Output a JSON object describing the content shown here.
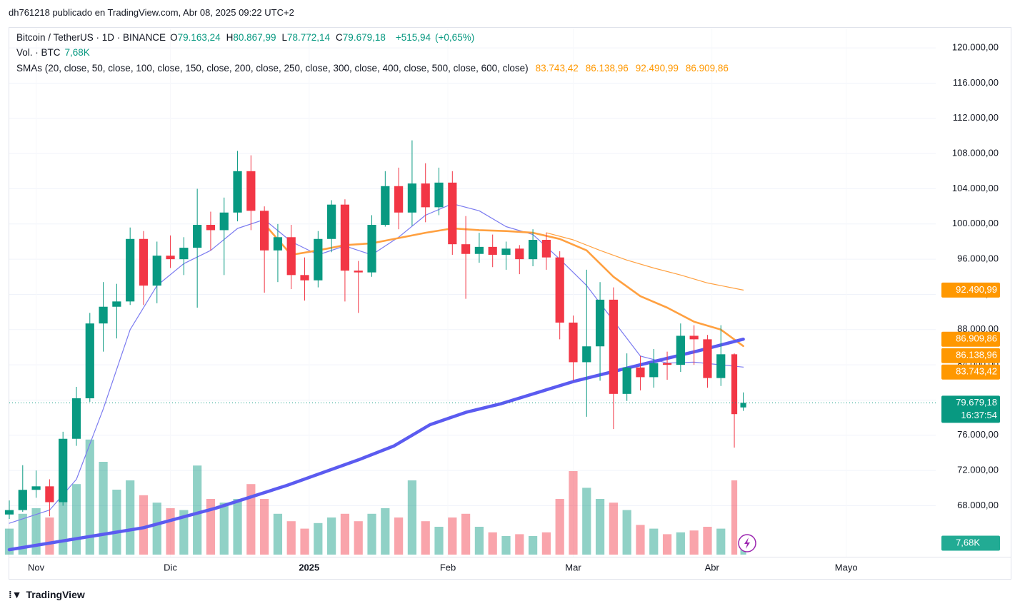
{
  "publisher": "dh761218 publicado en TradingView.com, Abr 08, 2025 09:22 UTC+2",
  "brand": "TradingView",
  "chart_data": {
    "type": "candlestick",
    "symbol": "Bitcoin / TetherUS · 1D · BINANCE",
    "ohlc": [
      {
        "key": "O",
        "value": 79163.24,
        "label": "79.163,24"
      },
      {
        "key": "H",
        "value": 80867.99,
        "label": "80.867,99"
      },
      {
        "key": "L",
        "value": 78772.14,
        "label": "78.772,14"
      },
      {
        "key": "C",
        "value": 79679.18,
        "label": "79.679,18"
      }
    ],
    "change": {
      "value": 515.94,
      "label": "+515,94"
    },
    "change_pct": {
      "value": 0.65,
      "label": "(+0,65%)"
    },
    "volume_title": "Vol. · BTC",
    "volume_last": {
      "value": 7680,
      "label": "7,68K"
    },
    "countdown": "16:37:54",
    "up_color": "#089981",
    "down_color": "#f23645",
    "grid": true,
    "xlim": [
      0,
      207
    ],
    "xticks": [
      {
        "value": 6,
        "label": "Nov"
      },
      {
        "value": 36,
        "label": "Dic"
      },
      {
        "value": 67,
        "label": "2025"
      },
      {
        "value": 98,
        "label": "Feb"
      },
      {
        "value": 126,
        "label": "Mar"
      },
      {
        "value": 157,
        "label": "Abr"
      },
      {
        "value": 187,
        "label": "Mayo"
      }
    ],
    "ylim": [
      62200,
      122200
    ],
    "yticks": [
      {
        "value": 68000,
        "label": "68.000,00"
      },
      {
        "value": 72000,
        "label": "72.000,00"
      },
      {
        "value": 76000,
        "label": "76.000,00"
      },
      {
        "value": 80000,
        "label": "80.000,00"
      },
      {
        "value": 84000,
        "label": "84.000,00"
      },
      {
        "value": 88000,
        "label": "88.000,00"
      },
      {
        "value": 92000,
        "label": "92.000,00"
      },
      {
        "value": 96000,
        "label": "96.000,00"
      },
      {
        "value": 100000,
        "label": "100.000,00"
      },
      {
        "value": 104000,
        "label": "104.000,00"
      },
      {
        "value": 108000,
        "label": "108.000,00"
      },
      {
        "value": 112000,
        "label": "112.000,00"
      },
      {
        "value": 116000,
        "label": "116.000,00"
      },
      {
        "value": 120000,
        "label": "120.000,00"
      }
    ],
    "volume_lim": [
      0,
      100000
    ],
    "candles": {
      "x": [
        0,
        3,
        6,
        9,
        12,
        15,
        18,
        21,
        24,
        27,
        30,
        33,
        36,
        39,
        42,
        45,
        48,
        51,
        54,
        57,
        60,
        63,
        66,
        69,
        72,
        75,
        78,
        81,
        84,
        87,
        90,
        93,
        96,
        99,
        102,
        105,
        108,
        111,
        114,
        117,
        120,
        123,
        126,
        129,
        132,
        135,
        138,
        141,
        144,
        147,
        150,
        153,
        156,
        159,
        162,
        164
      ],
      "open": [
        67000,
        67500,
        69800,
        70200,
        68400,
        75600,
        80200,
        88700,
        90600,
        91200,
        98300,
        93000,
        96400,
        96000,
        97300,
        99900,
        99300,
        101300,
        106000,
        101500,
        97000,
        98500,
        94200,
        93600,
        98300,
        102200,
        94700,
        94500,
        99900,
        104300,
        101300,
        104600,
        101900,
        104700,
        97700,
        96600,
        97400,
        96500,
        97200,
        96000,
        98200,
        96200,
        88800,
        84300,
        86100,
        91400,
        80700,
        83700,
        82600,
        84200,
        84000,
        87300,
        86900,
        82500,
        85200,
        79163.24
      ],
      "high": [
        68600,
        72600,
        72000,
        71000,
        76400,
        81500,
        89900,
        93400,
        93200,
        99600,
        99200,
        98000,
        98700,
        98500,
        104000,
        101400,
        103000,
        108300,
        107800,
        102000,
        100000,
        99900,
        96200,
        99200,
        102700,
        102800,
        95800,
        101000,
        106000,
        106400,
        109500,
        106900,
        106400,
        106000,
        100900,
        99000,
        98800,
        98000,
        97600,
        99400,
        99000,
        96900,
        89600,
        94800,
        93400,
        92800,
        85300,
        85000,
        85800,
        85500,
        88700,
        88500,
        87400,
        88500,
        85300,
        80867.99
      ],
      "low": [
        66500,
        67300,
        68900,
        66800,
        68000,
        74800,
        79800,
        85500,
        87000,
        90800,
        90800,
        91000,
        95000,
        94200,
        90500,
        97000,
        94200,
        100300,
        99300,
        92200,
        93400,
        92600,
        91300,
        92800,
        96800,
        91200,
        89900,
        94000,
        99700,
        99400,
        99800,
        100200,
        101000,
        96500,
        91500,
        95600,
        95100,
        94800,
        94300,
        95200,
        94800,
        86900,
        82200,
        78100,
        82200,
        76700,
        79900,
        81100,
        81400,
        82300,
        83200,
        84000,
        81400,
        81600,
        74600,
        78772.14
      ],
      "close": [
        67500,
        69800,
        70200,
        68400,
        75600,
        80200,
        88700,
        90600,
        91200,
        98300,
        93000,
        96400,
        96000,
        97300,
        99900,
        99300,
        101300,
        106000,
        101500,
        97000,
        98500,
        94200,
        93600,
        98300,
        102200,
        94700,
        94500,
        99900,
        104300,
        101300,
        104600,
        101900,
        104700,
        97700,
        96600,
        97400,
        96500,
        97200,
        96000,
        98200,
        96200,
        88800,
        84300,
        86100,
        91400,
        80700,
        83700,
        82600,
        84200,
        84000,
        87300,
        86900,
        82500,
        85200,
        78400,
        79679.18
      ],
      "volume": [
        14000,
        22000,
        25000,
        20000,
        35000,
        38000,
        62000,
        50000,
        35000,
        40000,
        32000,
        28000,
        25000,
        24000,
        48000,
        30000,
        28000,
        30000,
        38000,
        30000,
        22000,
        18000,
        14000,
        17000,
        20000,
        22000,
        18000,
        22000,
        25000,
        20000,
        40000,
        18000,
        15000,
        20000,
        22000,
        15000,
        12000,
        10000,
        11000,
        10000,
        12000,
        30000,
        45000,
        36000,
        30000,
        28000,
        24000,
        16000,
        14000,
        11000,
        12000,
        13000,
        15000,
        14000,
        40000,
        7680
      ]
    },
    "sma_title": "SMAs (20, close, 50, close, 100, close, 150, close, 200, close, 250, close, 300, close, 400, close, 500, close, 600, close)",
    "sma_label_color": "#ff9800",
    "sma": [
      {
        "color": "#7b7bf0",
        "width": 1.2,
        "x": [
          0,
          9,
          15,
          21,
          27,
          33,
          39,
          45,
          51,
          57,
          63,
          69,
          75,
          81,
          87,
          93,
          99,
          105,
          111,
          117,
          123,
          129,
          135,
          141,
          147,
          153,
          159,
          164
        ],
        "values": [
          66000,
          67500,
          71000,
          79000,
          88000,
          93000,
          95500,
          97000,
          99500,
          100500,
          98000,
          96500,
          97500,
          96500,
          98500,
          101000,
          102300,
          101500,
          99700,
          98800,
          96000,
          93000,
          89000,
          85000,
          84200,
          84300,
          84000,
          83743.42
        ],
        "value_label": "83.743,42"
      },
      {
        "color": "#ffa040",
        "width": 2.6,
        "x": [
          57,
          63,
          69,
          75,
          81,
          87,
          93,
          99,
          105,
          111,
          117,
          123,
          129,
          135,
          141,
          147,
          153,
          159,
          164
        ],
        "values": [
          100000,
          96500,
          97000,
          97600,
          97800,
          98400,
          99000,
          99500,
          99300,
          99200,
          99000,
          98300,
          97000,
          94000,
          91800,
          90500,
          88900,
          88000,
          86138.96
        ],
        "value_label": "86.138,96"
      },
      {
        "color": "#ffa040",
        "width": 1.2,
        "x": [
          120,
          126,
          132,
          138,
          144,
          150,
          156,
          164
        ],
        "values": [
          99000,
          98200,
          97000,
          95900,
          95000,
          94200,
          93300,
          92490.99
        ],
        "value_label": "92.490,99"
      },
      {
        "color": "#5b5bf0",
        "width": 4.5,
        "x": [
          0,
          30,
          46,
          62,
          78,
          86,
          94,
          102,
          110,
          126,
          141,
          154,
          164
        ],
        "values": [
          63000,
          65500,
          67700,
          70300,
          73200,
          74800,
          77200,
          78600,
          79600,
          82100,
          84000,
          85600,
          86909.86
        ],
        "value_label": "86.909,86"
      }
    ]
  }
}
